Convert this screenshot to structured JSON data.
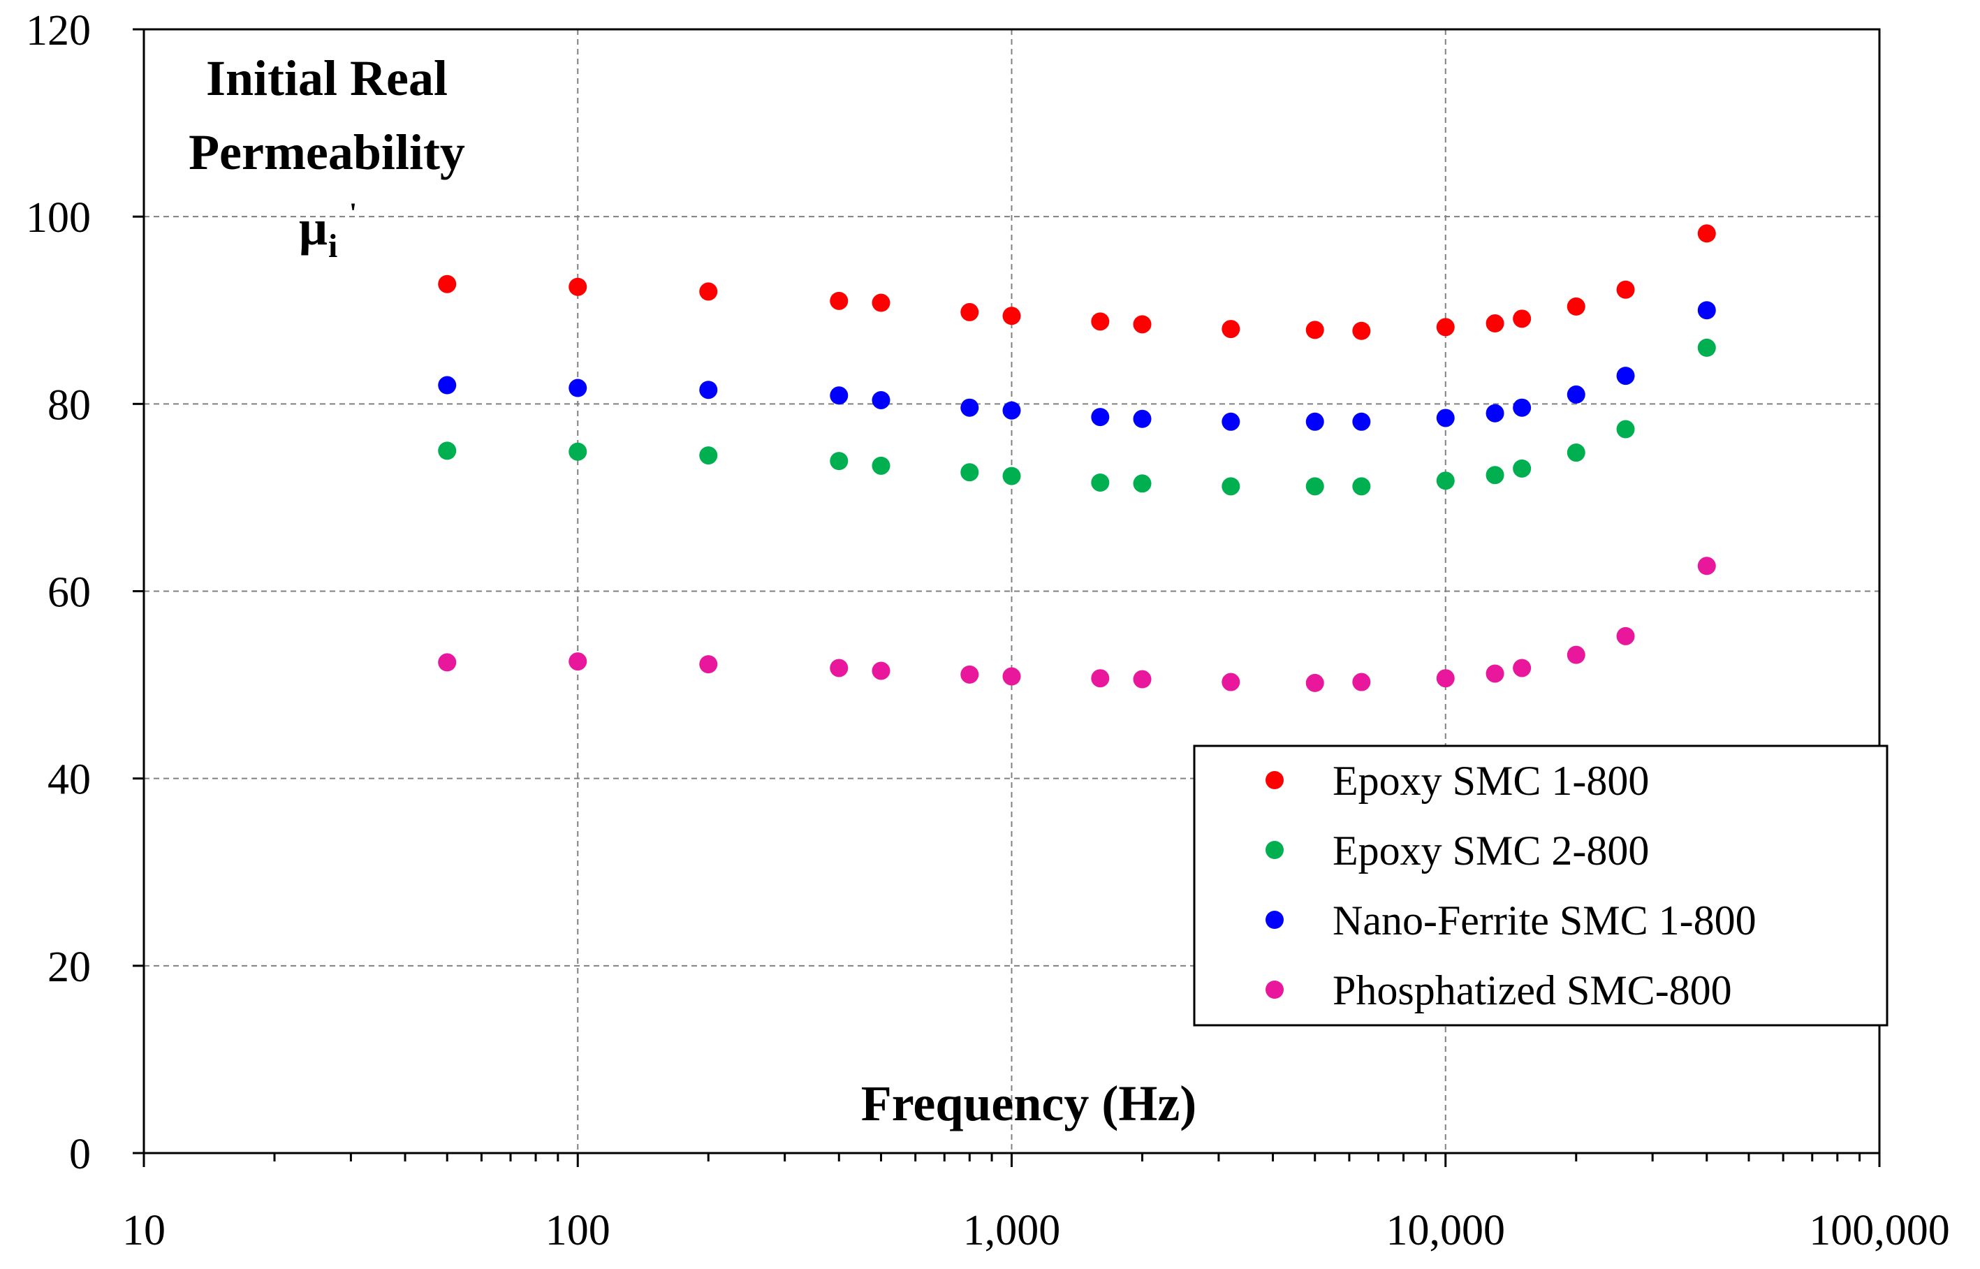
{
  "chart_data": {
    "type": "scatter",
    "title": "",
    "xlabel": "Frequency (Hz)",
    "ylabel_lines": [
      "Initial Real",
      "Permeability"
    ],
    "ylabel_symbol": "μ",
    "ylabel_subscript": "i",
    "ylabel_prime": "'",
    "x_scale": "log",
    "xlim": [
      10,
      100000
    ],
    "ylim": [
      0,
      120
    ],
    "x_ticks": [
      10,
      100,
      1000,
      10000,
      100000
    ],
    "x_tick_labels": [
      "10",
      "100",
      "1,000",
      "10,000",
      "100,000"
    ],
    "y_ticks": [
      0,
      20,
      40,
      60,
      80,
      100,
      120
    ],
    "y_tick_labels": [
      "0",
      "20",
      "40",
      "60",
      "80",
      "100",
      "120"
    ],
    "grid": true,
    "legend_position": "bottom-right",
    "x": [
      50,
      100,
      200,
      400,
      500,
      800,
      1000,
      1600,
      2000,
      3200,
      5000,
      6400,
      10000,
      13000,
      15000,
      20000,
      26000,
      40000
    ],
    "series": [
      {
        "name": "Epoxy SMC 1-800",
        "color": "#ff0000",
        "values": [
          92.8,
          92.5,
          92.0,
          91.0,
          90.8,
          89.8,
          89.4,
          88.8,
          88.5,
          88.0,
          87.9,
          87.8,
          88.2,
          88.6,
          89.1,
          90.4,
          92.2,
          98.2
        ]
      },
      {
        "name": "Epoxy SMC 2-800",
        "color": "#00b050",
        "values": [
          75.0,
          74.9,
          74.5,
          73.9,
          73.4,
          72.7,
          72.3,
          71.6,
          71.5,
          71.2,
          71.2,
          71.2,
          71.8,
          72.4,
          73.1,
          74.8,
          77.3,
          86.0
        ]
      },
      {
        "name": "Nano-Ferrite SMC 1-800",
        "color": "#0000ff",
        "values": [
          82.0,
          81.7,
          81.5,
          80.9,
          80.4,
          79.6,
          79.3,
          78.6,
          78.4,
          78.1,
          78.1,
          78.1,
          78.5,
          79.0,
          79.6,
          81.0,
          83.0,
          90.0
        ]
      },
      {
        "name": "Phosphatized SMC-800",
        "color": "#e8179b",
        "values": [
          52.4,
          52.5,
          52.2,
          51.8,
          51.5,
          51.1,
          50.9,
          50.7,
          50.6,
          50.3,
          50.2,
          50.3,
          50.7,
          51.2,
          51.8,
          53.2,
          55.2,
          62.7
        ]
      }
    ]
  }
}
